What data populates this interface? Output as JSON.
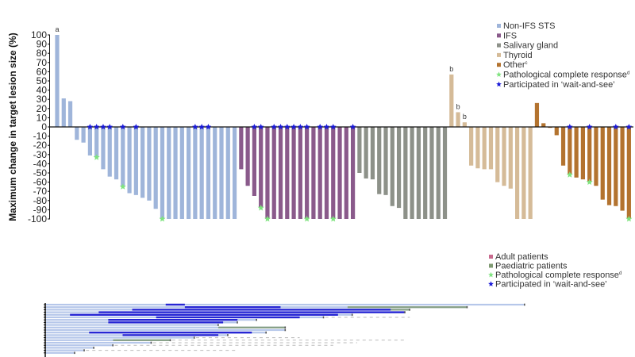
{
  "chart_data": [
    {
      "type": "bar",
      "subtype": "waterfall",
      "ylabel": "Maximum change in target lesion size (%)",
      "ylim": [
        -100,
        100
      ],
      "yticks": [
        100,
        90,
        80,
        70,
        60,
        50,
        40,
        30,
        20,
        10,
        0,
        -10,
        -20,
        -30,
        -40,
        -50,
        -60,
        -70,
        -80,
        -90,
        -100
      ],
      "legend_placement": "top-right",
      "legend": [
        {
          "label": "Non-IFS STS",
          "kind": "square",
          "color": "#9fb5da"
        },
        {
          "label": "IFS",
          "kind": "square",
          "color": "#8a5a8b"
        },
        {
          "label": "Salivary gland",
          "kind": "square",
          "color": "#8d9189"
        },
        {
          "label": "Thyroid",
          "kind": "square",
          "color": "#d5bb98"
        },
        {
          "label": "Other",
          "sup": "c",
          "kind": "square",
          "color": "#b3732f"
        },
        {
          "label": "Pathological complete response",
          "sup": "d",
          "kind": "green-star",
          "color": "#7fe37f"
        },
        {
          "label": "Participated in ‘wait-and-see’",
          "kind": "blue-star",
          "color": "#1b1bd8"
        }
      ],
      "groups": [
        {
          "name": "Non-IFS STS",
          "color": "#9fb5da",
          "values": [
            100,
            31,
            28,
            -14,
            -17,
            -31,
            -33,
            -46,
            -54,
            -57,
            -65,
            -72,
            -74,
            -77,
            -80,
            -89,
            -100,
            -100,
            -100,
            -100,
            -100,
            -100,
            -100,
            -100,
            -100,
            -100,
            -100,
            -100
          ],
          "wait_and_see": [
            6,
            7,
            8,
            9,
            11,
            13,
            22,
            23,
            24
          ],
          "pcr": [
            7,
            11,
            17
          ],
          "annotations": [
            {
              "bar": 1,
              "text": "a"
            }
          ]
        },
        {
          "name": "IFS",
          "color": "#8a5a8b",
          "values": [
            -46,
            -64,
            -75,
            -88,
            -100,
            -100,
            -100,
            -100,
            -100,
            -100,
            -100,
            -100,
            -100,
            -100,
            -100,
            -100,
            -100,
            -100
          ],
          "wait_and_see": [
            3,
            4,
            6,
            7,
            8,
            9,
            10,
            11,
            13,
            14,
            15,
            18
          ],
          "pcr": [
            4,
            5,
            11,
            15
          ],
          "annotations": []
        },
        {
          "name": "Salivary gland",
          "color": "#8d9189",
          "values": [
            -50,
            -56,
            -57,
            -73,
            -74,
            -86,
            -88,
            -100,
            -100,
            -100,
            -100,
            -100,
            -100,
            -100
          ],
          "wait_and_see": [],
          "pcr": [],
          "annotations": []
        },
        {
          "name": "Thyroid",
          "color": "#d5bb98",
          "values": [
            57,
            16,
            5,
            -42,
            -45,
            -46,
            -46,
            -60,
            -64,
            -67,
            -100,
            -100,
            -100
          ],
          "wait_and_see": [],
          "pcr": [],
          "annotations": [
            {
              "bar": 1,
              "text": "b"
            },
            {
              "bar": 2,
              "text": "b"
            },
            {
              "bar": 3,
              "text": "b"
            }
          ]
        },
        {
          "name": "Other",
          "color": "#b3732f",
          "values": [
            26,
            4,
            -1,
            -9,
            -42,
            -52,
            -55,
            -57,
            -60,
            -64,
            -79,
            -85,
            -86,
            -91,
            -100
          ],
          "wait_and_see": [
            6,
            9,
            13,
            15
          ],
          "pcr": [
            6,
            9,
            15
          ],
          "annotations": []
        }
      ]
    },
    {
      "type": "bar",
      "subtype": "swimmer",
      "legend_placement": "top-right",
      "legend": [
        {
          "label": "Adult patients",
          "kind": "square",
          "color": "#c86a8e"
        },
        {
          "label": "Paediatric patients",
          "kind": "square",
          "color": "#7f9a72"
        },
        {
          "label": "Pathological complete response",
          "sup": "d",
          "kind": "green-star",
          "color": "#7fe37f"
        },
        {
          "label": "Participated in ‘wait-and-see’",
          "kind": "blue-star",
          "color": "#1b1bd8"
        }
      ],
      "colors": {
        "lane": "#b6c7ea",
        "wait": "#2626d4",
        "paediatric": "#86a084",
        "dashed": "#bbbbbb"
      },
      "rows": [
        {
          "end": 100,
          "wait": [
            25,
            29
          ]
        },
        {
          "end": 88,
          "wait": [
            29,
            49
          ],
          "paed": [
            63,
            88
          ]
        },
        {
          "end": 76,
          "wait": [
            18,
            72
          ],
          "paed": [
            55,
            76
          ]
        },
        {
          "end": 75,
          "wait": [
            11,
            75
          ]
        },
        {
          "end": 64,
          "wait": [
            5,
            61
          ]
        },
        {
          "end": 58,
          "wait": [
            23,
            53
          ],
          "dashed": 76
        },
        {
          "end": 44,
          "wait": [
            13,
            40
          ]
        },
        {
          "end": 40,
          "wait": [
            13,
            37
          ]
        },
        {
          "end": 36
        },
        {
          "end": 50,
          "paed": [
            36,
            50
          ]
        },
        {
          "end": 50
        },
        {
          "end": 46,
          "wait": [
            9,
            43
          ]
        },
        {
          "end": 38,
          "wait": [
            16,
            36
          ]
        },
        {
          "end": 31,
          "dashed": 53
        },
        {
          "end": 26,
          "paed": [
            14,
            26
          ],
          "dashed": 75
        },
        {
          "end": 22,
          "dashed": 65
        },
        {
          "end": 14,
          "dashed": 60
        },
        {
          "end": 10
        },
        {
          "end": 8,
          "dashed": 40
        },
        {
          "end": 6
        }
      ]
    }
  ]
}
